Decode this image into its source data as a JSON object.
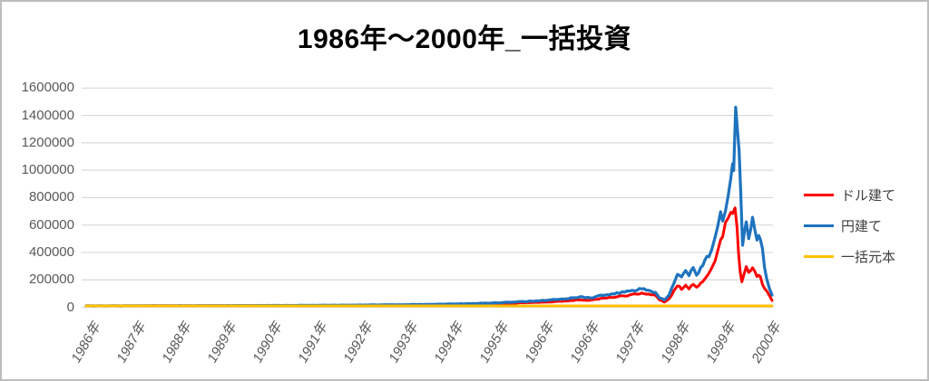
{
  "chart_data": {
    "type": "line",
    "title": "1986年～2000年_一括投資",
    "xlabel": "",
    "ylabel": "",
    "ylim": [
      0,
      1600000
    ],
    "y_ticks": [
      0,
      200000,
      400000,
      600000,
      800000,
      1000000,
      1200000,
      1400000,
      1600000
    ],
    "x_tick_labels": [
      "1986年",
      "1987年",
      "1988年",
      "1989年",
      "1990年",
      "1991年",
      "1992年",
      "1993年",
      "1994年",
      "1995年",
      "1996年",
      "1996年",
      "1997年",
      "1998年",
      "1999年",
      "2000年"
    ],
    "grid": "horizontal",
    "legend_position": "right",
    "x_unit": "fraction_of_axis_1986_to_2000",
    "series": [
      {
        "name": "ドル建て",
        "color": "#ff0000",
        "points": [
          [
            0.0,
            10000
          ],
          [
            0.1,
            10500
          ],
          [
            0.2,
            11000
          ],
          [
            0.3,
            12000
          ],
          [
            0.4,
            13500
          ],
          [
            0.45,
            15000
          ],
          [
            0.5,
            17000
          ],
          [
            0.55,
            20000
          ],
          [
            0.6,
            26000
          ],
          [
            0.64,
            33000
          ],
          [
            0.67,
            38000
          ],
          [
            0.7,
            46000
          ],
          [
            0.72,
            55000
          ],
          [
            0.735,
            50000
          ],
          [
            0.75,
            62000
          ],
          [
            0.77,
            75000
          ],
          [
            0.785,
            82000
          ],
          [
            0.8,
            95000
          ],
          [
            0.81,
            102000
          ],
          [
            0.82,
            92000
          ],
          [
            0.83,
            88000
          ],
          [
            0.836,
            55000
          ],
          [
            0.843,
            38000
          ],
          [
            0.85,
            60000
          ],
          [
            0.857,
            120000
          ],
          [
            0.862,
            160000
          ],
          [
            0.868,
            135000
          ],
          [
            0.874,
            160000
          ],
          [
            0.879,
            140000
          ],
          [
            0.885,
            160000
          ],
          [
            0.89,
            145000
          ],
          [
            0.896,
            170000
          ],
          [
            0.902,
            200000
          ],
          [
            0.908,
            240000
          ],
          [
            0.912,
            280000
          ],
          [
            0.917,
            340000
          ],
          [
            0.921,
            420000
          ],
          [
            0.925,
            500000
          ],
          [
            0.928,
            520000
          ],
          [
            0.932,
            600000
          ],
          [
            0.936,
            650000
          ],
          [
            0.94,
            700000
          ],
          [
            0.9425,
            690000
          ],
          [
            0.946,
            730000
          ],
          [
            0.949,
            600000
          ],
          [
            0.951,
            420000
          ],
          [
            0.9535,
            250000
          ],
          [
            0.956,
            195000
          ],
          [
            0.959,
            240000
          ],
          [
            0.9625,
            310000
          ],
          [
            0.966,
            250000
          ],
          [
            0.969,
            280000
          ],
          [
            0.9715,
            295000
          ],
          [
            0.975,
            250000
          ],
          [
            0.978,
            215000
          ],
          [
            0.9805,
            245000
          ],
          [
            0.983,
            215000
          ],
          [
            0.986,
            165000
          ],
          [
            0.989,
            140000
          ],
          [
            0.992,
            120000
          ],
          [
            0.996,
            85000
          ],
          [
            1.0,
            50000
          ]
        ]
      },
      {
        "name": "円建て",
        "color": "#1e73be",
        "points": [
          [
            0.0,
            10000
          ],
          [
            0.1,
            11000
          ],
          [
            0.2,
            12000
          ],
          [
            0.3,
            13000
          ],
          [
            0.4,
            16000
          ],
          [
            0.45,
            18000
          ],
          [
            0.5,
            21000
          ],
          [
            0.55,
            25000
          ],
          [
            0.6,
            32000
          ],
          [
            0.64,
            42000
          ],
          [
            0.67,
            50000
          ],
          [
            0.7,
            62000
          ],
          [
            0.72,
            75000
          ],
          [
            0.735,
            68000
          ],
          [
            0.75,
            85000
          ],
          [
            0.77,
            100000
          ],
          [
            0.785,
            110000
          ],
          [
            0.8,
            125000
          ],
          [
            0.81,
            135000
          ],
          [
            0.82,
            120000
          ],
          [
            0.83,
            110000
          ],
          [
            0.836,
            70000
          ],
          [
            0.843,
            55000
          ],
          [
            0.85,
            90000
          ],
          [
            0.857,
            180000
          ],
          [
            0.862,
            250000
          ],
          [
            0.868,
            215000
          ],
          [
            0.874,
            265000
          ],
          [
            0.879,
            230000
          ],
          [
            0.885,
            300000
          ],
          [
            0.89,
            240000
          ],
          [
            0.896,
            290000
          ],
          [
            0.902,
            335000
          ],
          [
            0.908,
            380000
          ],
          [
            0.912,
            430000
          ],
          [
            0.917,
            520000
          ],
          [
            0.921,
            600000
          ],
          [
            0.925,
            680000
          ],
          [
            0.928,
            640000
          ],
          [
            0.932,
            700000
          ],
          [
            0.936,
            820000
          ],
          [
            0.94,
            950000
          ],
          [
            0.9425,
            1050000
          ],
          [
            0.944,
            1000000
          ],
          [
            0.947,
            1450000
          ],
          [
            0.9495,
            1300000
          ],
          [
            0.952,
            1150000
          ],
          [
            0.9545,
            800000
          ],
          [
            0.957,
            450000
          ],
          [
            0.96,
            560000
          ],
          [
            0.9625,
            630000
          ],
          [
            0.966,
            520000
          ],
          [
            0.969,
            580000
          ],
          [
            0.9715,
            640000
          ],
          [
            0.975,
            560000
          ],
          [
            0.978,
            480000
          ],
          [
            0.9805,
            540000
          ],
          [
            0.983,
            500000
          ],
          [
            0.986,
            420000
          ],
          [
            0.989,
            300000
          ],
          [
            0.992,
            220000
          ],
          [
            0.996,
            140000
          ],
          [
            1.0,
            85000
          ]
        ]
      },
      {
        "name": "一括元本",
        "color": "#ffc000",
        "points": [
          [
            0.0,
            10000
          ],
          [
            1.0,
            10000
          ]
        ]
      }
    ]
  },
  "legend": {
    "items": [
      {
        "label": "ドル建て",
        "color": "#ff0000"
      },
      {
        "label": "円建て",
        "color": "#1e73be"
      },
      {
        "label": "一括元本",
        "color": "#ffc000"
      }
    ]
  },
  "colors": {
    "gridline": "#d9d9d9",
    "axis_label": "#595959",
    "title": "#000000",
    "legend_text": "#404040",
    "chart_border": "#bdbdbd",
    "background": "#ffffff"
  }
}
